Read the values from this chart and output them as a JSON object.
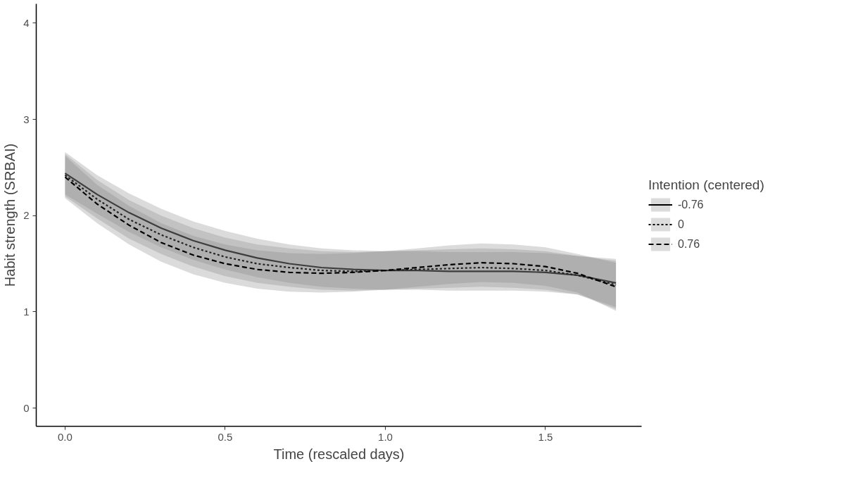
{
  "chart_data": {
    "type": "line",
    "xlabel": "Time (rescaled days)",
    "ylabel": "Habit strength (SRBAI)",
    "legend_title": "Intention (centered)",
    "legend": "right",
    "grid": false,
    "marker": "none",
    "x": [
      0,
      0.1,
      0.2,
      0.3,
      0.4,
      0.5,
      0.6,
      0.7,
      0.8,
      0.9,
      1.0,
      1.1,
      1.2,
      1.3,
      1.4,
      1.5,
      1.6,
      1.72
    ],
    "xlim": [
      -0.09,
      1.8
    ],
    "xticks": [
      {
        "value": 0,
        "label": "0.0"
      },
      0.5,
      {
        "value": 1,
        "label": "1.0"
      },
      1.5
    ],
    "ylim": [
      -0.19,
      4.2
    ],
    "yticks": [
      0,
      1,
      2,
      3,
      4
    ],
    "series": [
      {
        "name": "-0.76",
        "color": "#000000",
        "line_style": "solid",
        "values": [
          2.44,
          2.22,
          2.03,
          1.87,
          1.74,
          1.64,
          1.56,
          1.5,
          1.46,
          1.44,
          1.43,
          1.43,
          1.42,
          1.42,
          1.42,
          1.41,
          1.38,
          1.3
        ],
        "lower": [
          2.22,
          2.02,
          1.83,
          1.67,
          1.54,
          1.44,
          1.36,
          1.3,
          1.26,
          1.24,
          1.23,
          1.23,
          1.22,
          1.22,
          1.22,
          1.21,
          1.18,
          1.05
        ],
        "upper": [
          2.66,
          2.42,
          2.23,
          2.07,
          1.94,
          1.84,
          1.76,
          1.7,
          1.66,
          1.64,
          1.63,
          1.63,
          1.62,
          1.62,
          1.62,
          1.61,
          1.58,
          1.55
        ]
      },
      {
        "name": "0",
        "color": "#000000",
        "line_style": "dotted",
        "values": [
          2.42,
          2.17,
          1.96,
          1.8,
          1.67,
          1.57,
          1.5,
          1.46,
          1.43,
          1.42,
          1.43,
          1.44,
          1.45,
          1.46,
          1.45,
          1.43,
          1.38,
          1.28
        ],
        "lower": [
          2.2,
          1.97,
          1.76,
          1.6,
          1.47,
          1.37,
          1.3,
          1.26,
          1.23,
          1.22,
          1.23,
          1.24,
          1.25,
          1.26,
          1.25,
          1.23,
          1.18,
          1.03
        ],
        "upper": [
          2.64,
          2.37,
          2.16,
          2.0,
          1.87,
          1.77,
          1.7,
          1.66,
          1.63,
          1.62,
          1.63,
          1.64,
          1.65,
          1.66,
          1.65,
          1.63,
          1.58,
          1.53
        ]
      },
      {
        "name": "0.76",
        "color": "#000000",
        "line_style": "dashed",
        "values": [
          2.4,
          2.12,
          1.9,
          1.72,
          1.59,
          1.5,
          1.44,
          1.41,
          1.4,
          1.41,
          1.43,
          1.46,
          1.49,
          1.51,
          1.5,
          1.47,
          1.4,
          1.26
        ],
        "lower": [
          2.18,
          1.92,
          1.7,
          1.52,
          1.39,
          1.3,
          1.24,
          1.21,
          1.2,
          1.21,
          1.23,
          1.26,
          1.29,
          1.31,
          1.3,
          1.27,
          1.2,
          1.01
        ],
        "upper": [
          2.62,
          2.32,
          2.1,
          1.92,
          1.79,
          1.7,
          1.64,
          1.61,
          1.6,
          1.61,
          1.63,
          1.66,
          1.69,
          1.71,
          1.7,
          1.67,
          1.6,
          1.51
        ]
      }
    ]
  }
}
